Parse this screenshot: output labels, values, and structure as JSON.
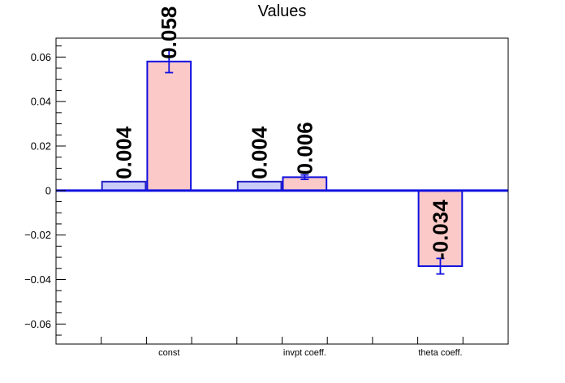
{
  "page": {
    "background_color": "#ffffff"
  },
  "chart_data": {
    "type": "bar",
    "title": "Values",
    "xlabel": "",
    "ylabel": "",
    "grid": false,
    "legend": false,
    "ylim": [
      -0.069,
      0.0685
    ],
    "y_minor_step": 0.005,
    "y_major_step": 0.02,
    "y_major_ticks": [
      {
        "value": 0.06,
        "label": "0.06"
      },
      {
        "value": 0.04,
        "label": "0.04"
      },
      {
        "value": 0.02,
        "label": "0.02"
      },
      {
        "value": 0,
        "label": "0"
      },
      {
        "value": -0.02,
        "label": "−0.02"
      },
      {
        "value": -0.04,
        "label": "−0.04"
      },
      {
        "value": -0.06,
        "label": "−0.06"
      }
    ],
    "n_bins": 10,
    "categories": [
      {
        "label": "const",
        "bin": 3
      },
      {
        "label": "invpt coeff.",
        "bin": 6
      },
      {
        "label": "theta coeff.",
        "bin": 9
      }
    ],
    "baseline": {
      "value": 0,
      "color": "#1111e0"
    },
    "frame_color": "#000000",
    "text_color": "#000000",
    "series": [
      {
        "name": "blue",
        "fill_color": "#ccccf8",
        "line_color": "#2222c0",
        "bins": [
          2,
          5,
          8
        ],
        "values": [
          0.004,
          0.004,
          0
        ],
        "value_labels": [
          "0.004",
          "0.004",
          ""
        ],
        "errors": [
          0,
          0,
          0
        ]
      },
      {
        "name": "pink",
        "fill_color": "#fcc9c9",
        "line_color": "#1111e0",
        "bins": [
          3,
          6,
          9
        ],
        "values": [
          0.058,
          0.006,
          -0.034
        ],
        "value_labels": [
          "0.058",
          "0.006",
          "-0.034"
        ],
        "errors": [
          0.005,
          0.001,
          0.0035
        ]
      }
    ]
  }
}
